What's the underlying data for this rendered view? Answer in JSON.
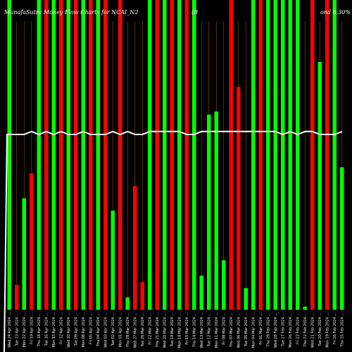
{
  "chart_data": {
    "type": "bar",
    "title": "MunafaSutra Money Flow Charts for NCAI_N2",
    "title_right": "(B",
    "title_far_right": "ond 8.30%",
    "colors": {
      "up": "#00ff00",
      "down": "#ff0000",
      "line": "#ffffff",
      "grid": "#ff8c00",
      "background": "#000000"
    },
    "ylim": [
      0,
      100
    ],
    "categories": [
      "Wed 24 Apr 2024 ...",
      "Tue 23 Apr 2024 ...",
      "Mon 22 Apr 2024 ...",
      "Fri 19 Apr 2024 ...",
      "Thu 18 Apr 2024 ...",
      "Tue 16 Apr 2024 ...",
      "Mon 15 Apr 2024 ...",
      "Fri 12 Apr 2024 ...",
      "Wed 10 Apr 2024 ...",
      "Tue 09 Apr 2024 ...",
      "Mon 08 Apr 2024 ...",
      "Fri 05 Apr 2024 ...",
      "Thu 04 Apr 2024 ...",
      "Wed 03 Apr 2024 ...",
      "Tue 02 Apr 2024 ...",
      "Mon 01 Apr 2024 ...",
      "Thu 28 Mar 2024 ...",
      "Wed 27 Mar 2024 ...",
      "Tue 26 Mar 2024 ...",
      "Fri 22 Mar 2024 ...",
      "Thu 21 Mar 2024 ...",
      "Wed 20 Mar 2024 ...",
      "Tue 19 Mar 2024 ...",
      "Mon 18 Mar 2024 ...",
      "Fri 15 Mar 2024 ...",
      "Thu 14 Mar 2024 ...",
      "Wed 13 Mar 2024 ...",
      "Tue 12 Mar 2024 ...",
      "Mon 11 Mar 2024 ...",
      "Fri 08 Mar 2024 ...",
      "Thu 07 Mar 2024 ...",
      "Wed 06 Mar 2024 ...",
      "Tue 05 Mar 2024 ...",
      "Mon 04 Mar 2024 ...",
      "Fri 01 Mar 2024 ...",
      "Thu 29 Feb 2024 ...",
      "Wed 28 Feb 2024 ...",
      "Tue 27 Feb 2024 ...",
      "Mon 26 Feb 2024 ...",
      "Fri 23 Feb 2024 ...",
      "Thu 22 Feb 2024 ...",
      "Wed 21 Feb 2024 ...",
      "Tue 20 Feb 2024 ...",
      "Mon 19 Feb 2024 ...",
      "Fri 16 Feb 2024 ...",
      "Thu 15 Feb 2024 ..."
    ],
    "series": [
      {
        "values": [
          100,
          8,
          36,
          44,
          100,
          100,
          100,
          100,
          100,
          100,
          100,
          100,
          100,
          100,
          32,
          100,
          4,
          40,
          9,
          100,
          100,
          100,
          100,
          100,
          100,
          100,
          11,
          63,
          64,
          16,
          100,
          72,
          7,
          100,
          100,
          100,
          100,
          100,
          100,
          100,
          1,
          100,
          80,
          100,
          100,
          46
        ],
        "directions": [
          "up",
          "down",
          "up",
          "down",
          "up",
          "down",
          "up",
          "down",
          "up",
          "down",
          "up",
          "down",
          "up",
          "down",
          "up",
          "down",
          "up",
          "down",
          "down",
          "up",
          "down",
          "up",
          "down",
          "up",
          "down",
          "up",
          "up",
          "up",
          "up",
          "up",
          "down",
          "down",
          "up",
          "up",
          "down",
          "up",
          "up",
          "up",
          "up",
          "up",
          "up",
          "down",
          "up",
          "down",
          "up",
          "up"
        ]
      }
    ],
    "line": [
      60,
      60,
      60,
      61,
      60,
      61,
      60,
      61,
      60,
      60,
      61,
      60,
      60,
      60,
      61,
      60,
      61,
      60,
      60,
      61,
      61,
      61,
      61,
      61,
      60,
      60,
      61,
      61,
      61,
      61,
      61,
      61,
      61,
      61,
      61,
      61,
      61,
      60,
      61,
      60,
      61,
      61,
      60,
      60,
      60,
      61
    ]
  }
}
